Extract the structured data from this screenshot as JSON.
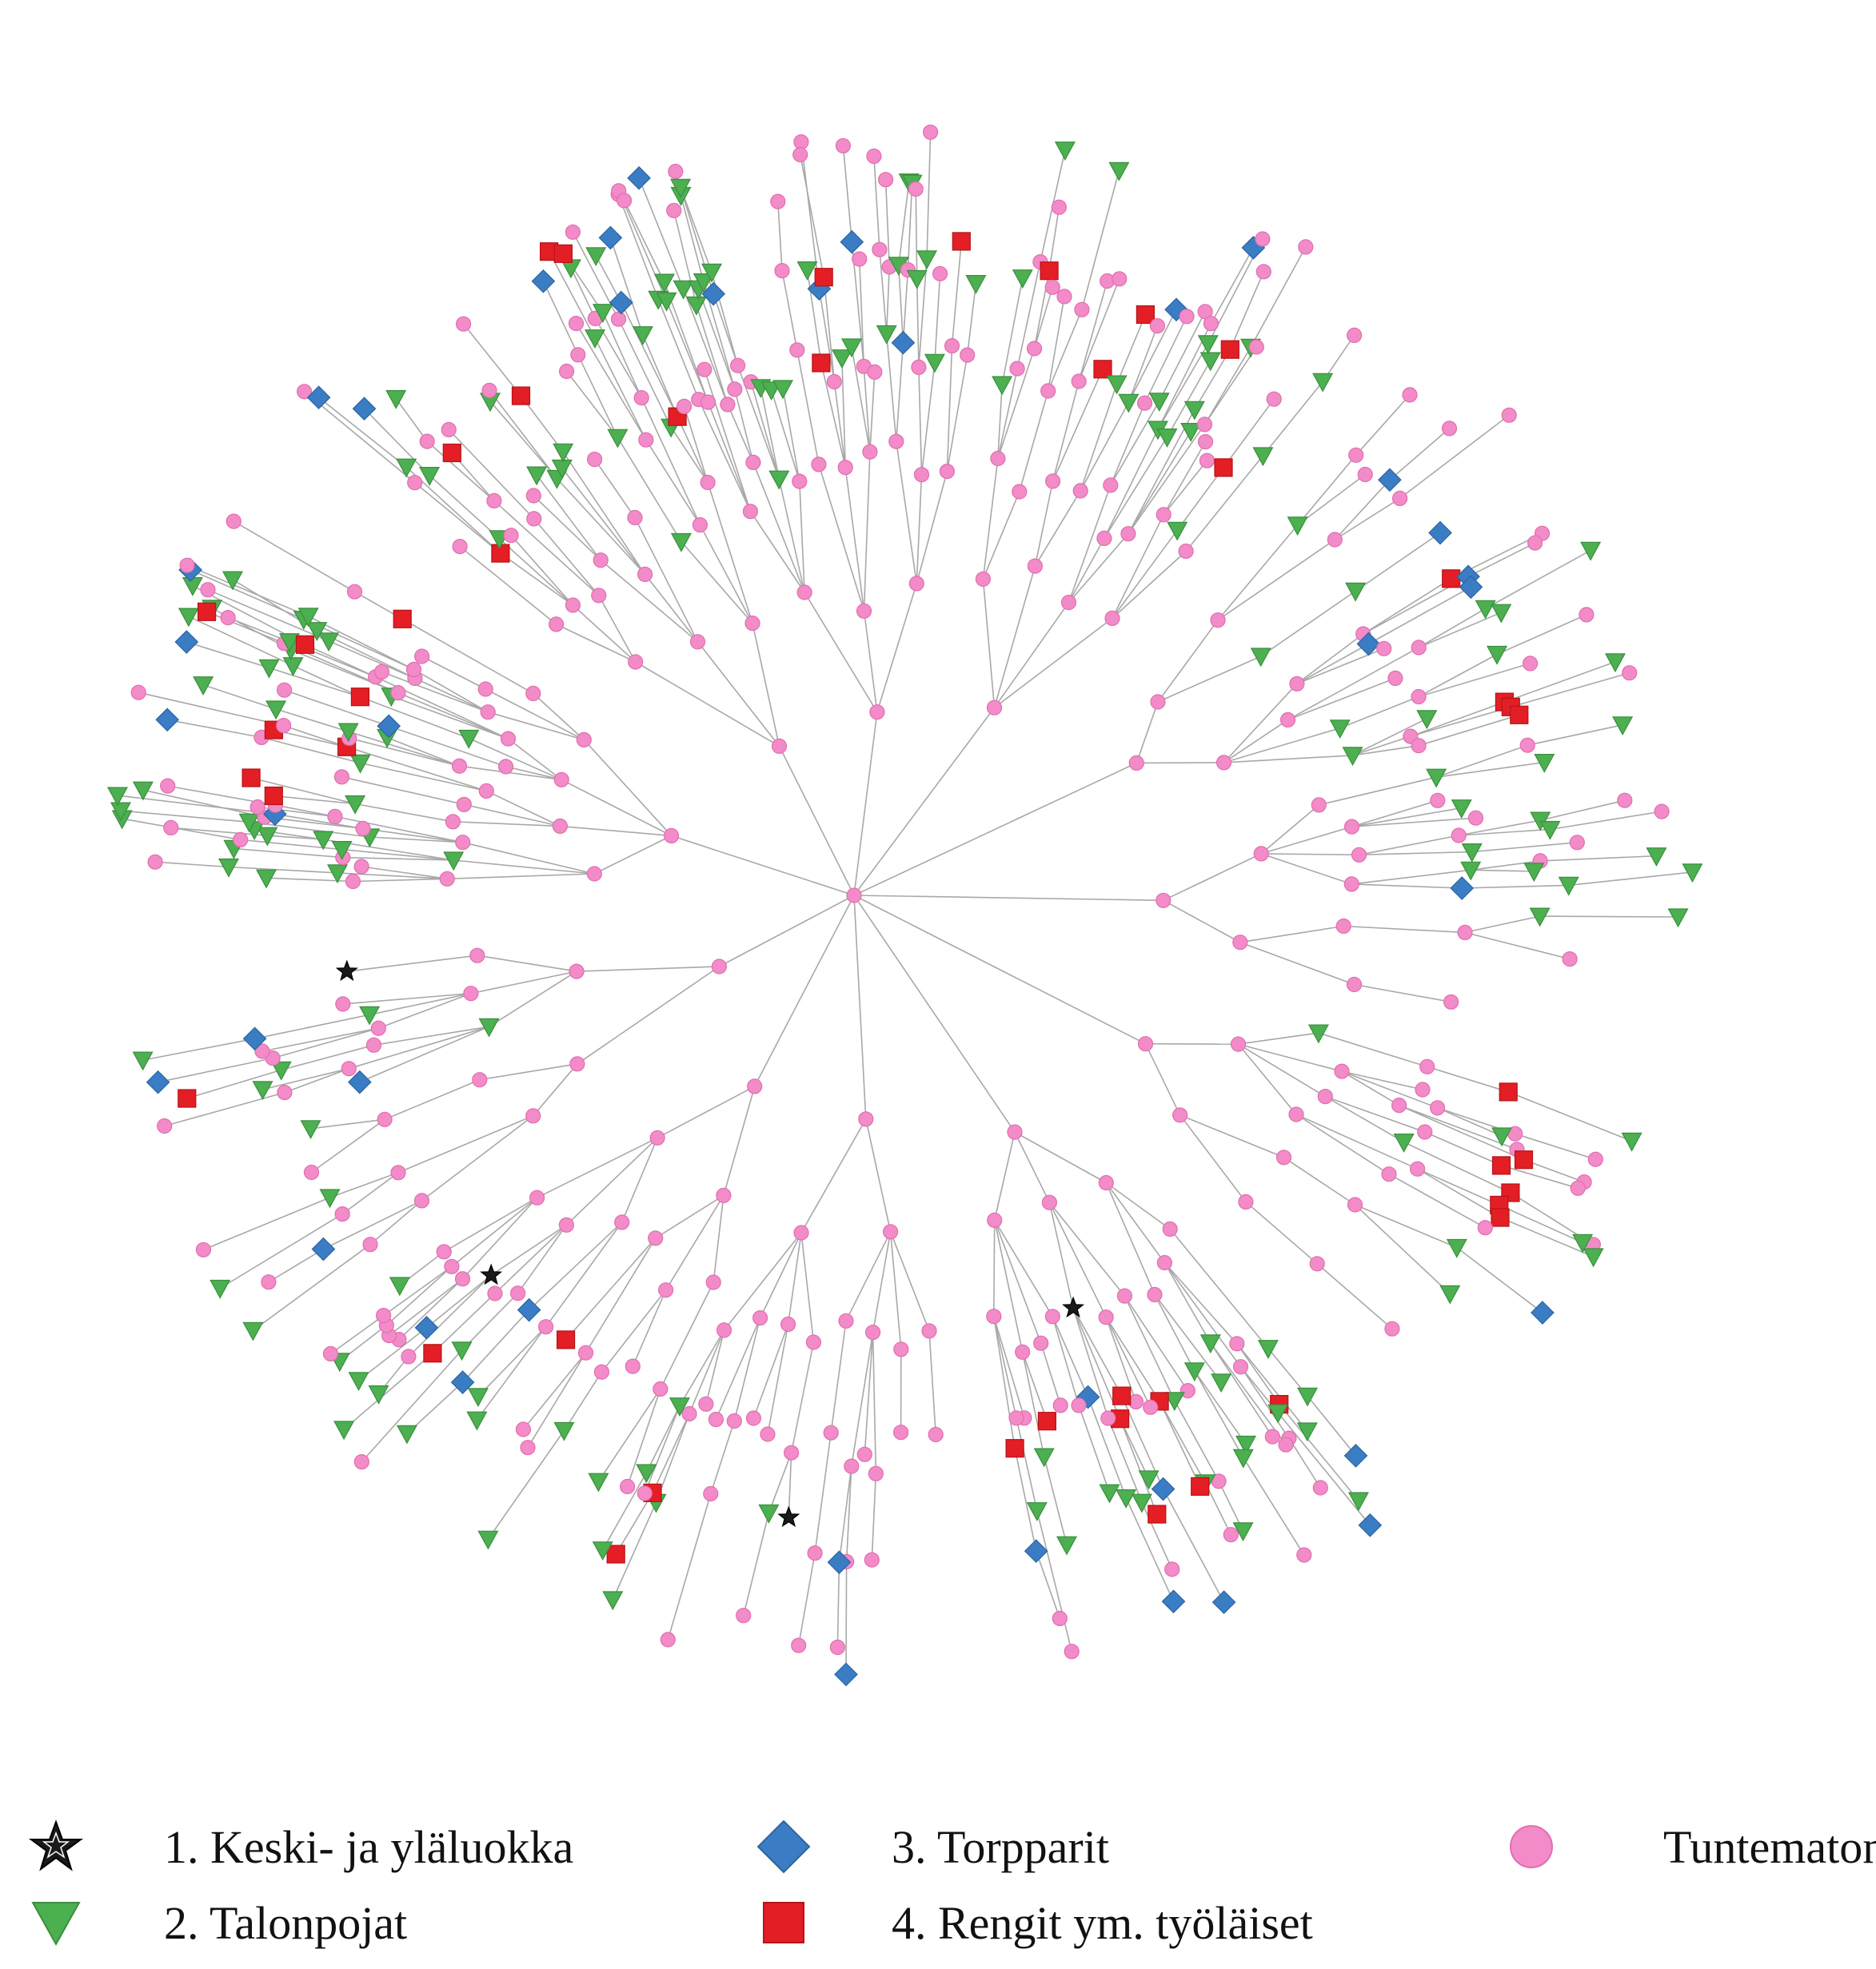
{
  "colors": {
    "edge": "#a8a8a8",
    "keski": "#1a1a1a",
    "talonpojat": "#4caf50",
    "torpparit": "#3a7dc4",
    "rengit": "#e31e24",
    "tuntematon": "#f38bc8"
  },
  "legend": [
    {
      "key": "keski",
      "label": "1. Keski- ja yläluokka",
      "marker": "star"
    },
    {
      "key": "talonpojat",
      "label": "2. Talonpojat",
      "marker": "triangle-down"
    },
    {
      "key": "torpparit",
      "label": "3. Torpparit",
      "marker": "diamond"
    },
    {
      "key": "rengit",
      "label": "4. Rengit ym. työläiset",
      "marker": "square"
    },
    {
      "key": "tuntematon",
      "label": "Tuntematon",
      "marker": "circle"
    }
  ],
  "diagram": {
    "type": "radial-family-tree",
    "category_shares": {
      "tuntematon": 0.56,
      "talonpojat": 0.29,
      "rengit": 0.09,
      "torpparit": 0.05
    },
    "keski_nodes": 4,
    "seed": 20240611
  }
}
